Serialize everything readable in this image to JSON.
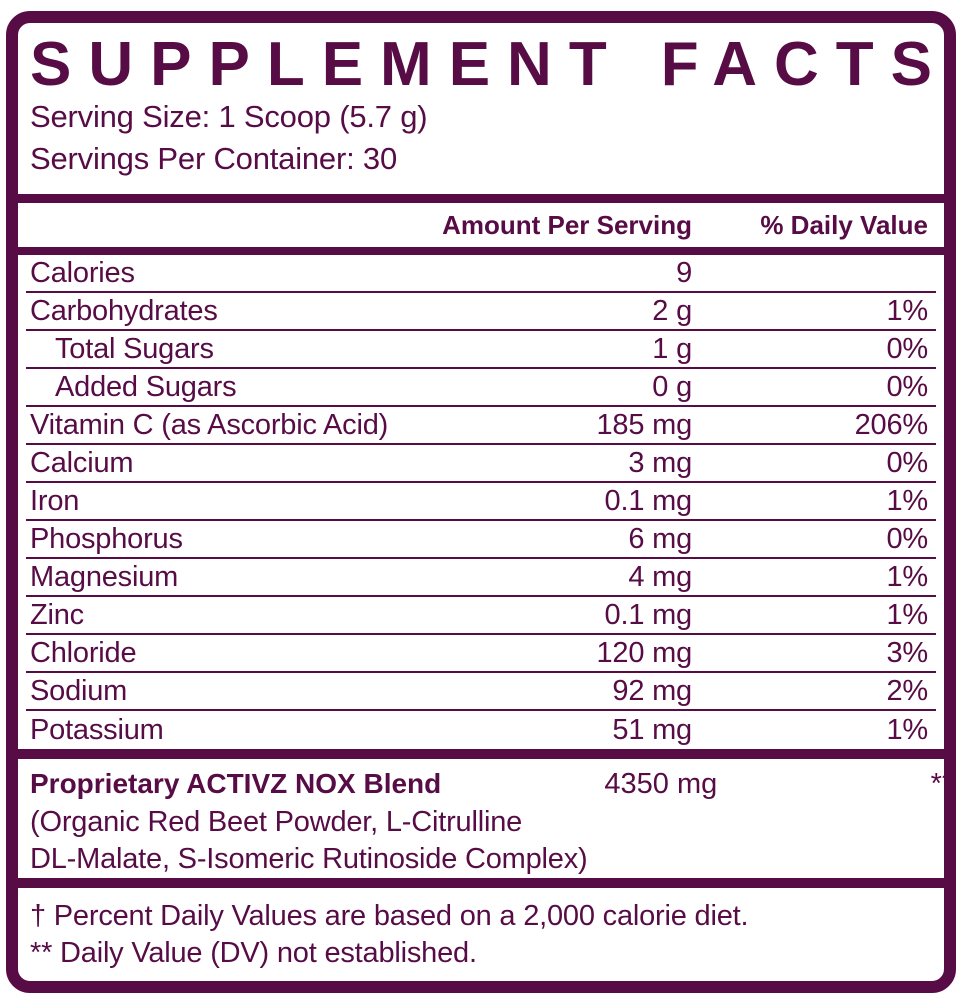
{
  "label": {
    "title": {
      "word1": "SUPPLEMENT",
      "word2": "FACTS"
    },
    "serving": {
      "size": "Serving Size: 1 Scoop (5.7 g)",
      "per_container": "Servings Per Container: 30"
    },
    "columns": {
      "amount": "Amount Per Serving",
      "daily": "% Daily Value"
    },
    "rows": [
      {
        "name": "Calories",
        "amount": "9",
        "daily": ""
      },
      {
        "name": "Carbohydrates",
        "amount": "2 g",
        "daily": "1%"
      },
      {
        "name": "Total Sugars",
        "amount": "1 g",
        "daily": "0%"
      },
      {
        "name": "Added Sugars",
        "amount": "0 g",
        "daily": "0%"
      },
      {
        "name": "Vitamin C (as Ascorbic Acid)",
        "amount": "185 mg",
        "daily": "206%"
      },
      {
        "name": "Calcium",
        "amount": "3 mg",
        "daily": "0%"
      },
      {
        "name": "Iron",
        "amount": "0.1 mg",
        "daily": "1%"
      },
      {
        "name": "Phosphorus",
        "amount": "6 mg",
        "daily": "0%"
      },
      {
        "name": "Magnesium",
        "amount": "4 mg",
        "daily": "1%"
      },
      {
        "name": "Zinc",
        "amount": "0.1 mg",
        "daily": "1%"
      },
      {
        "name": "Chloride",
        "amount": "120 mg",
        "daily": "3%"
      },
      {
        "name": "Sodium",
        "amount": "92 mg",
        "daily": "2%"
      },
      {
        "name": "Potassium",
        "amount": "51 mg",
        "daily": "1%"
      }
    ],
    "blend": {
      "name": "Proprietary ACTIVZ NOX Blend",
      "amount": "4350 mg",
      "daily": "**",
      "ingredients_line1": "(Organic Red Beet Powder, L-Citrulline",
      "ingredients_line2": "DL-Malate, S-Isomeric Rutinoside Complex)"
    },
    "footnotes": {
      "daily_value": "† Percent Daily Values are based on a 2,000 calorie diet.",
      "dv_not_established": "** Daily Value (DV) not established."
    },
    "colors": {
      "plum": "#570C46",
      "background": "#FFFFFF"
    }
  }
}
